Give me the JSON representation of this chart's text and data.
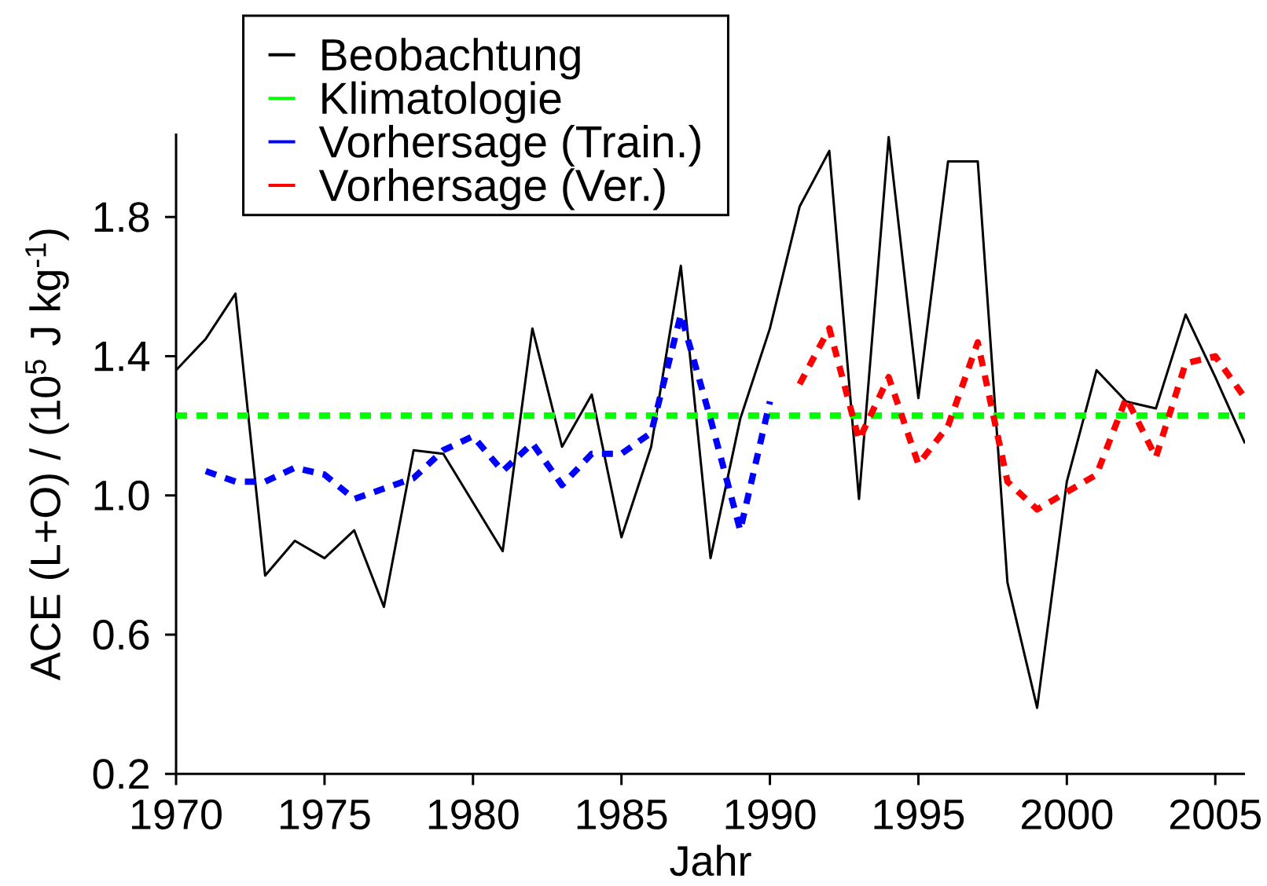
{
  "chart_data": {
    "type": "line",
    "xlabel": "Jahr",
    "ylabel": "ACE (L+O) / (10$^{5}$ J kg$^{-1}$)",
    "xlim": [
      1970,
      2006
    ],
    "xticks": [
      1970,
      1975,
      1980,
      1985,
      1990,
      1995,
      2000,
      2005
    ],
    "ylim": [
      0.2,
      2.04
    ],
    "yticks": [
      0.2,
      0.6,
      {
        "value": 1,
        "label": "1.0"
      },
      1.4,
      1.8
    ],
    "legend": "top left",
    "series": [
      {
        "name": "Beobachtung",
        "color": "#000000",
        "line_style": "solid",
        "x": [
          1970,
          1971,
          1972,
          1973,
          1974,
          1975,
          1976,
          1977,
          1978,
          1979,
          1980,
          1981,
          1982,
          1983,
          1984,
          1985,
          1986,
          1987,
          1988,
          1989,
          1990,
          1991,
          1992,
          1993,
          1994,
          1995,
          1996,
          1997,
          1998,
          1999,
          2000,
          2001,
          2002,
          2003,
          2004,
          2005,
          2006
        ],
        "values": [
          1.36,
          1.45,
          1.58,
          0.77,
          0.87,
          0.82,
          0.9,
          0.68,
          1.13,
          1.12,
          0.98,
          0.84,
          1.48,
          1.14,
          1.29,
          0.88,
          1.14,
          1.66,
          0.82,
          1.22,
          1.48,
          1.83,
          1.99,
          0.99,
          2.03,
          1.28,
          1.96,
          1.96,
          0.75,
          0.39,
          1.04,
          1.36,
          1.27,
          1.25,
          1.52,
          1.34,
          1.15
        ]
      },
      {
        "name": "Klimatologie",
        "color": "#00ff00",
        "line_style": "dashed",
        "x": [
          1970,
          2006
        ],
        "values": [
          1.23,
          1.23
        ]
      },
      {
        "name": "Vorhersage (Train.)",
        "color": "#0000ff",
        "line_style": "dashed",
        "x": [
          1971,
          1972,
          1973,
          1974,
          1975,
          1976,
          1977,
          1978,
          1979,
          1980,
          1981,
          1982,
          1983,
          1984,
          1985,
          1986,
          1987,
          1988,
          1989,
          1990
        ],
        "values": [
          1.07,
          1.04,
          1.04,
          1.08,
          1.06,
          0.99,
          1.02,
          1.05,
          1.13,
          1.17,
          1.07,
          1.15,
          1.03,
          1.12,
          1.12,
          1.18,
          1.52,
          1.22,
          0.9,
          1.27
        ]
      },
      {
        "name": "Vorhersage (Ver.)",
        "color": "#ff0000",
        "line_style": "dashed",
        "x": [
          1991,
          1992,
          1993,
          1994,
          1995,
          1996,
          1997,
          1998,
          1999,
          2000,
          2001,
          2002,
          2003,
          2004,
          2005,
          2006
        ],
        "values": [
          1.32,
          1.48,
          1.16,
          1.34,
          1.09,
          1.2,
          1.44,
          1.04,
          0.96,
          1.01,
          1.06,
          1.28,
          1.11,
          1.38,
          1.4,
          1.28
        ]
      }
    ]
  }
}
